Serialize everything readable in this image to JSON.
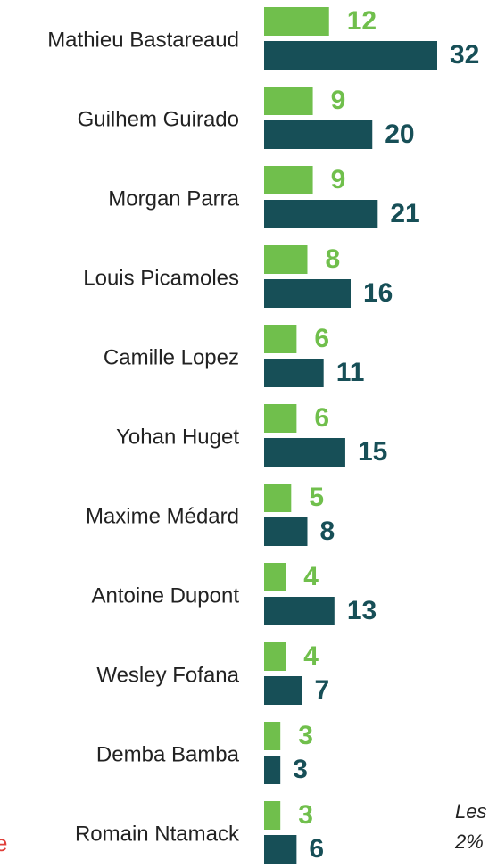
{
  "chart_data": {
    "type": "bar",
    "orientation": "horizontal",
    "categories": [
      "Mathieu Bastareaud",
      "Guilhem Guirado",
      "Morgan Parra",
      "Louis Picamoles",
      "Camille Lopez",
      "Yohan Huget",
      "Maxime Médard",
      "Antoine Dupont",
      "Wesley Fofana",
      "Demba Bamba",
      "Romain Ntamack"
    ],
    "series": [
      {
        "color": "#70bf4c",
        "values": [
          12,
          9,
          9,
          8,
          6,
          6,
          5,
          4,
          4,
          3,
          3
        ]
      },
      {
        "color": "#174f57",
        "values": [
          32,
          20,
          21,
          16,
          11,
          15,
          8,
          13,
          7,
          3,
          6
        ]
      }
    ],
    "xlim": [
      0,
      32
    ],
    "annotations": [
      "Les",
      "2%",
      "e"
    ]
  }
}
